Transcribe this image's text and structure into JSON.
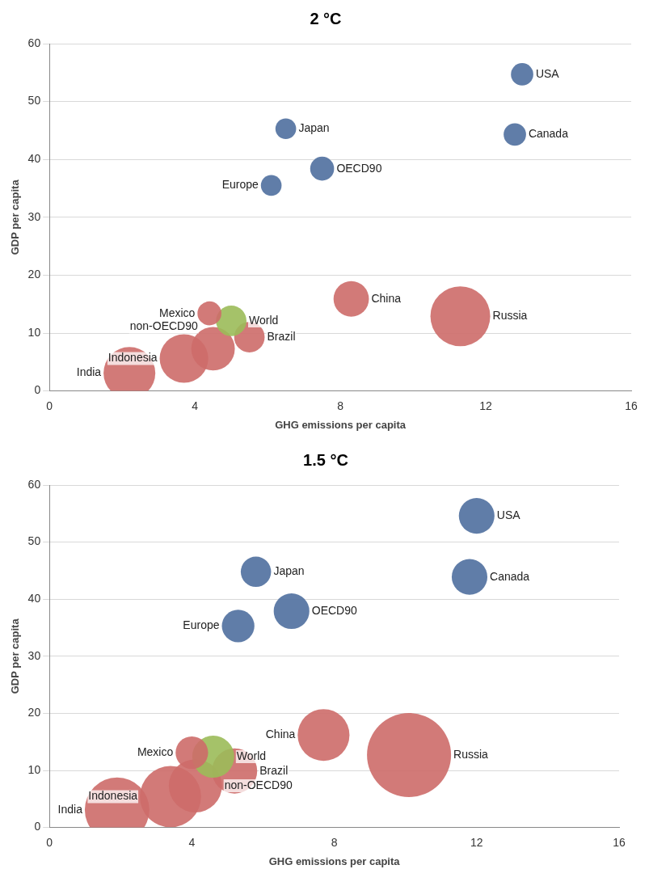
{
  "chart_data": [
    {
      "type": "bubble",
      "title": "2 °C",
      "xlabel": "GHG emissions per capita",
      "ylabel": "GDP per capita",
      "xlim": [
        0,
        16
      ],
      "xticks": [
        0,
        4,
        8,
        12,
        16
      ],
      "ylim": [
        0,
        60
      ],
      "yticks": [
        0,
        10,
        20,
        30,
        40,
        50,
        60
      ],
      "grid": "y",
      "legend": false,
      "series": [
        {
          "name": "USA",
          "color": "#4f6f9f",
          "x": [
            13.0
          ],
          "values": [
            54.7
          ],
          "sizes": [
            0.14
          ]
        },
        {
          "name": "Canada",
          "color": "#4f6f9f",
          "x": [
            12.8
          ],
          "values": [
            44.3
          ],
          "sizes": [
            0.14
          ]
        },
        {
          "name": "Japan",
          "color": "#4f6f9f",
          "x": [
            6.5
          ],
          "values": [
            45.3
          ],
          "sizes": [
            0.12
          ]
        },
        {
          "name": "OECD90",
          "color": "#4f6f9f",
          "x": [
            7.5
          ],
          "values": [
            38.4
          ],
          "sizes": [
            0.16
          ]
        },
        {
          "name": "Europe",
          "color": "#4f6f9f",
          "x": [
            6.1
          ],
          "values": [
            35.5
          ],
          "sizes": [
            0.12
          ]
        },
        {
          "name": "Mexico",
          "color": "#cd6b69",
          "x": [
            4.4
          ],
          "values": [
            13.4
          ],
          "sizes": [
            0.16
          ]
        },
        {
          "name": "World",
          "color": "#9bbb59",
          "x": [
            5.0
          ],
          "values": [
            12.1
          ],
          "sizes": [
            0.26
          ]
        },
        {
          "name": "Brazil",
          "color": "#cd6b69",
          "x": [
            5.5
          ],
          "values": [
            9.3
          ],
          "sizes": [
            0.26
          ]
        },
        {
          "name": "non-OECD90",
          "color": "#cd6b69",
          "x": [
            4.5
          ],
          "values": [
            7.3
          ],
          "sizes": [
            0.53
          ]
        },
        {
          "name": "Indonesia",
          "color": "#cd6b69",
          "x": [
            3.7
          ],
          "values": [
            5.6
          ],
          "sizes": [
            0.66
          ]
        },
        {
          "name": "India",
          "color": "#cd6b69",
          "x": [
            2.2
          ],
          "values": [
            3.1
          ],
          "sizes": [
            0.75
          ]
        },
        {
          "name": "China",
          "color": "#cd6b69",
          "x": [
            8.3
          ],
          "values": [
            15.9
          ],
          "sizes": [
            0.35
          ]
        },
        {
          "name": "Russia",
          "color": "#cd6b69",
          "x": [
            11.3
          ],
          "values": [
            12.9
          ],
          "sizes": [
            1
          ]
        }
      ]
    },
    {
      "type": "bubble",
      "title": "1.5 °C",
      "xlabel": "GHG emissions per capita",
      "ylabel": "GDP per capita",
      "xlim": [
        0,
        16
      ],
      "xticks": [
        0,
        4,
        8,
        12,
        16
      ],
      "ylim": [
        0,
        60
      ],
      "yticks": [
        0,
        10,
        20,
        30,
        40,
        50,
        60
      ],
      "grid": "y",
      "legend": false,
      "series": [
        {
          "name": "USA",
          "color": "#4f6f9f",
          "x": [
            12.0
          ],
          "values": [
            54.6
          ],
          "sizes": [
            0.18
          ]
        },
        {
          "name": "Canada",
          "color": "#4f6f9f",
          "x": [
            11.8
          ],
          "values": [
            43.9
          ],
          "sizes": [
            0.18
          ]
        },
        {
          "name": "Japan",
          "color": "#4f6f9f",
          "x": [
            5.8
          ],
          "values": [
            44.8
          ],
          "sizes": [
            0.13
          ]
        },
        {
          "name": "OECD90",
          "color": "#4f6f9f",
          "x": [
            6.8
          ],
          "values": [
            37.9
          ],
          "sizes": [
            0.18
          ]
        },
        {
          "name": "Europe",
          "color": "#4f6f9f",
          "x": [
            5.3
          ],
          "values": [
            35.3
          ],
          "sizes": [
            0.15
          ]
        },
        {
          "name": "Mexico",
          "color": "#cd6b69",
          "x": [
            4.0
          ],
          "values": [
            13.1
          ],
          "sizes": [
            0.15
          ]
        },
        {
          "name": "World",
          "color": "#9bbb59",
          "x": [
            4.6
          ],
          "values": [
            12.4
          ],
          "sizes": [
            0.25
          ]
        },
        {
          "name": "Brazil",
          "color": "#cd6b69",
          "x": [
            5.2
          ],
          "values": [
            9.9
          ],
          "sizes": [
            0.29
          ]
        },
        {
          "name": "non-OECD90",
          "color": "#cd6b69",
          "x": [
            4.1
          ],
          "values": [
            7.3
          ],
          "sizes": [
            0.4
          ]
        },
        {
          "name": "Indonesia",
          "color": "#cd6b69",
          "x": [
            3.4
          ],
          "values": [
            5.4
          ],
          "sizes": [
            0.53
          ]
        },
        {
          "name": "India",
          "color": "#cd6b69",
          "x": [
            1.9
          ],
          "values": [
            3.1
          ],
          "sizes": [
            0.59
          ]
        },
        {
          "name": "China",
          "color": "#cd6b69",
          "x": [
            7.7
          ],
          "values": [
            16.2
          ],
          "sizes": [
            0.38
          ]
        },
        {
          "name": "Russia",
          "color": "#cd6b69",
          "x": [
            10.1
          ],
          "values": [
            12.7
          ],
          "sizes": [
            1
          ]
        }
      ]
    }
  ]
}
